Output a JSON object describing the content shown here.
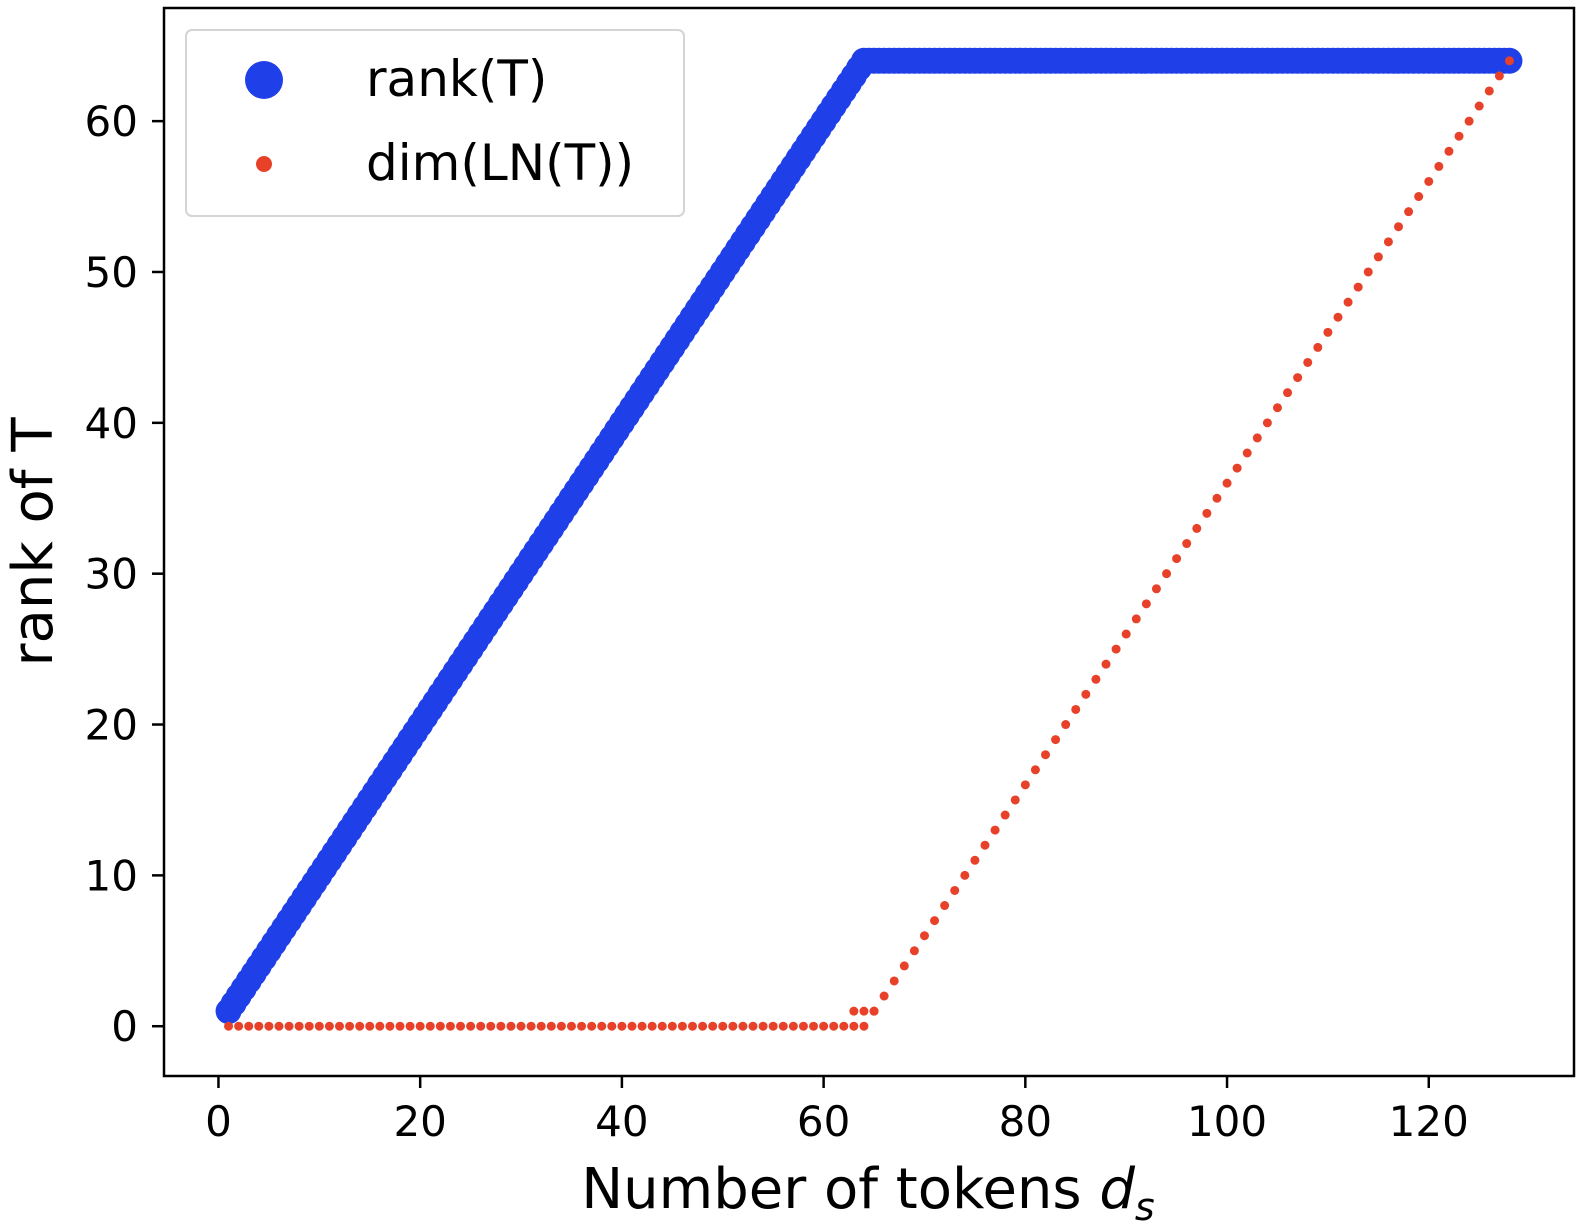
{
  "chart_data": {
    "type": "scatter",
    "title": "",
    "xlabel_main": "Number of tokens ",
    "xlabel_var": "d",
    "xlabel_sub": "s",
    "ylabel": "rank of T",
    "xlim": [
      -5.4,
      134.4
    ],
    "ylim": [
      -3.3,
      67.5
    ],
    "xticks": [
      0,
      20,
      40,
      60,
      80,
      100,
      120
    ],
    "yticks": [
      0,
      10,
      20,
      30,
      40,
      50,
      60
    ],
    "legend_position": "upper-left",
    "grid": false,
    "series": [
      {
        "name": "rank(T)",
        "color": "#1f3fe8",
        "marker": "large-circle",
        "rule": "y = min(x, 64)",
        "x_range": [
          1,
          128
        ]
      },
      {
        "name": "dim(LN(T))",
        "color": "#e8412a",
        "marker": "small-circle",
        "rule": "y = max(x - 64, 0)",
        "x_range": [
          1,
          128
        ]
      }
    ]
  }
}
